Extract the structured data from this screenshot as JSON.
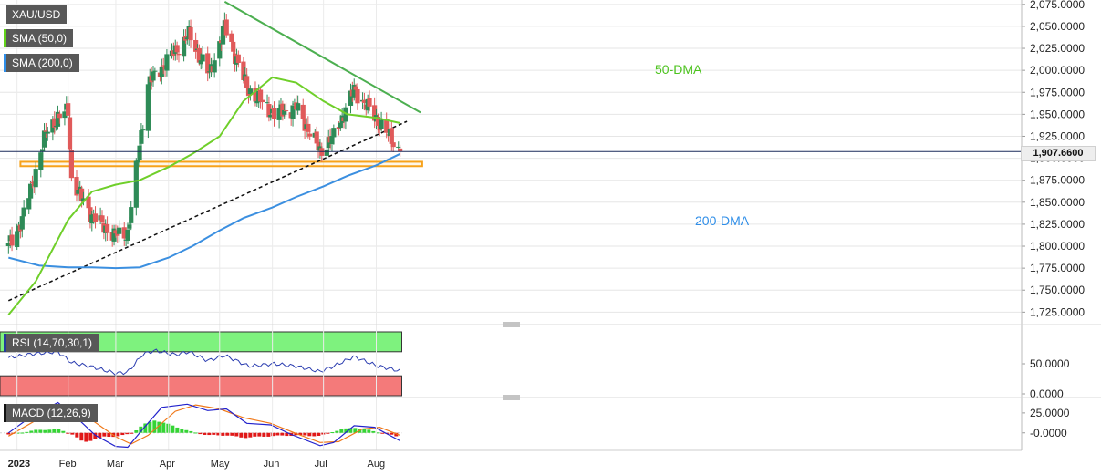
{
  "panels": {
    "price": {
      "legend": [
        {
          "label": "XAU/USD",
          "swatch": "white"
        },
        {
          "label": "SMA (50,0)",
          "swatch": "green"
        },
        {
          "label": "SMA (200,0)",
          "swatch": "blue"
        }
      ],
      "current_price_label": "1,907.6600",
      "annotations": {
        "dma50": "50-DMA",
        "dma200": "200-DMA"
      }
    },
    "rsi": {
      "legend": {
        "label": "RSI (14,70,30,1)",
        "swatch": "navy"
      }
    },
    "macd": {
      "legend": {
        "label": "MACD (12,26,9)",
        "swatch": "dark"
      }
    }
  },
  "chart_data": [
    {
      "type": "candlestick",
      "title": "XAU/USD",
      "x_labels": [
        "2023",
        "Feb",
        "Mar",
        "Apr",
        "May",
        "Jun",
        "Jul",
        "Aug"
      ],
      "y_ticks": [
        "2,075.0000",
        "2,050.0000",
        "2,025.0000",
        "2,000.0000",
        "1,975.0000",
        "1,950.0000",
        "1,925.0000",
        "1,900.0000",
        "1,875.0000",
        "1,850.0000",
        "1,825.0000",
        "1,800.0000",
        "1,775.0000",
        "1,750.0000",
        "1,725.0000"
      ],
      "ylim": [
        1715,
        2080
      ],
      "last_price": 1907.66,
      "ohlc_anchors": [
        {
          "date": "2022-12-28",
          "close": 1800
        },
        {
          "date": "2023-01-05",
          "close": 1830
        },
        {
          "date": "2023-01-20",
          "close": 1935
        },
        {
          "date": "2023-01-26",
          "close": 1945
        },
        {
          "date": "2023-02-01",
          "close": 1955
        },
        {
          "date": "2023-02-03",
          "close": 1875
        },
        {
          "date": "2023-02-15",
          "close": 1835
        },
        {
          "date": "2023-02-28",
          "close": 1812
        },
        {
          "date": "2023-03-08",
          "close": 1815
        },
        {
          "date": "2023-03-15",
          "close": 1915
        },
        {
          "date": "2023-03-20",
          "close": 1985
        },
        {
          "date": "2023-04-04",
          "close": 2020
        },
        {
          "date": "2023-04-13",
          "close": 2040
        },
        {
          "date": "2023-04-25",
          "close": 1995
        },
        {
          "date": "2023-05-04",
          "close": 2050
        },
        {
          "date": "2023-05-17",
          "close": 1980
        },
        {
          "date": "2023-06-02",
          "close": 1950
        },
        {
          "date": "2023-06-15",
          "close": 1958
        },
        {
          "date": "2023-06-29",
          "close": 1908
        },
        {
          "date": "2023-07-07",
          "close": 1925
        },
        {
          "date": "2023-07-19",
          "close": 1978
        },
        {
          "date": "2023-08-01",
          "close": 1945
        },
        {
          "date": "2023-08-15",
          "close": 1907.66
        }
      ],
      "series": [
        {
          "name": "SMA (50,0)",
          "points": [
            {
              "date": "2022-12-28",
              "value": 1722
            },
            {
              "date": "2023-01-13",
              "value": 1760
            },
            {
              "date": "2023-02-01",
              "value": 1830
            },
            {
              "date": "2023-02-15",
              "value": 1862
            },
            {
              "date": "2023-03-01",
              "value": 1870
            },
            {
              "date": "2023-03-15",
              "value": 1875
            },
            {
              "date": "2023-04-01",
              "value": 1890
            },
            {
              "date": "2023-04-15",
              "value": 1905
            },
            {
              "date": "2023-05-01",
              "value": 1925
            },
            {
              "date": "2023-05-15",
              "value": 1965
            },
            {
              "date": "2023-06-01",
              "value": 1992
            },
            {
              "date": "2023-06-15",
              "value": 1986
            },
            {
              "date": "2023-07-01",
              "value": 1965
            },
            {
              "date": "2023-07-15",
              "value": 1950
            },
            {
              "date": "2023-08-01",
              "value": 1946
            },
            {
              "date": "2023-08-15",
              "value": 1940
            }
          ]
        },
        {
          "name": "SMA (200,0)",
          "points": [
            {
              "date": "2022-12-28",
              "value": 1787
            },
            {
              "date": "2023-01-15",
              "value": 1778
            },
            {
              "date": "2023-02-01",
              "value": 1776
            },
            {
              "date": "2023-02-15",
              "value": 1776
            },
            {
              "date": "2023-03-01",
              "value": 1775
            },
            {
              "date": "2023-03-15",
              "value": 1776
            },
            {
              "date": "2023-04-01",
              "value": 1787
            },
            {
              "date": "2023-04-15",
              "value": 1800
            },
            {
              "date": "2023-05-01",
              "value": 1818
            },
            {
              "date": "2023-05-15",
              "value": 1832
            },
            {
              "date": "2023-06-01",
              "value": 1844
            },
            {
              "date": "2023-06-15",
              "value": 1856
            },
            {
              "date": "2023-07-01",
              "value": 1868
            },
            {
              "date": "2023-07-15",
              "value": 1880
            },
            {
              "date": "2023-08-01",
              "value": 1892
            },
            {
              "date": "2023-08-15",
              "value": 1905
            }
          ]
        },
        {
          "name": "resistance",
          "points": [
            {
              "date": "2023-05-04",
              "value": 2078
            },
            {
              "date": "2023-08-27",
              "value": 1952
            }
          ]
        },
        {
          "name": "support",
          "points": [
            {
              "date": "2022-12-28",
              "value": 1738
            },
            {
              "date": "2023-08-19",
              "value": 1942
            }
          ]
        },
        {
          "name": "support-zone",
          "points": [
            {
              "date": "2023-01-04",
              "value": 1896
            },
            {
              "date": "2023-08-28",
              "value": 1891
            }
          ]
        }
      ],
      "colors": {
        "up": "#2e8b57",
        "down": "#e05a5a",
        "sma50": "#6fcf2a",
        "sma200": "#3b8fe0",
        "resistance": "#4caf50",
        "zone": "#f7a21b"
      }
    },
    {
      "type": "line",
      "title": "RSI (14,70,30,1)",
      "y_ticks": [
        "50.0000",
        "0.0000"
      ],
      "ylim": [
        0,
        100
      ],
      "overbought": 70,
      "oversold": 30,
      "series": [
        {
          "name": "RSI",
          "points": [
            {
              "date": "2022-12-28",
              "value": 60
            },
            {
              "date": "2023-01-10",
              "value": 66
            },
            {
              "date": "2023-01-26",
              "value": 70
            },
            {
              "date": "2023-02-03",
              "value": 52
            },
            {
              "date": "2023-02-15",
              "value": 45
            },
            {
              "date": "2023-03-01",
              "value": 34
            },
            {
              "date": "2023-03-08",
              "value": 36
            },
            {
              "date": "2023-03-17",
              "value": 66
            },
            {
              "date": "2023-03-24",
              "value": 72
            },
            {
              "date": "2023-04-05",
              "value": 65
            },
            {
              "date": "2023-04-13",
              "value": 70
            },
            {
              "date": "2023-04-24",
              "value": 55
            },
            {
              "date": "2023-05-04",
              "value": 64
            },
            {
              "date": "2023-05-18",
              "value": 46
            },
            {
              "date": "2023-06-02",
              "value": 50
            },
            {
              "date": "2023-06-15",
              "value": 46
            },
            {
              "date": "2023-06-29",
              "value": 37
            },
            {
              "date": "2023-07-07",
              "value": 46
            },
            {
              "date": "2023-07-19",
              "value": 62
            },
            {
              "date": "2023-08-01",
              "value": 47
            },
            {
              "date": "2023-08-15",
              "value": 38
            }
          ]
        }
      ],
      "colors": {
        "line": "#2b3db0",
        "ob_fill": "#7ef27e",
        "os_fill": "#f47a7a"
      }
    },
    {
      "type": "line",
      "title": "MACD (12,26,9)",
      "y_ticks": [
        "25.0000",
        "-0.0000"
      ],
      "ylim": [
        -22,
        42
      ],
      "histogram": [
        {
          "date": "2022-12-28",
          "value": -2
        },
        {
          "date": "2023-01-12",
          "value": 3
        },
        {
          "date": "2023-01-25",
          "value": 5
        },
        {
          "date": "2023-02-03",
          "value": -1
        },
        {
          "date": "2023-02-10",
          "value": -12
        },
        {
          "date": "2023-02-22",
          "value": -5
        },
        {
          "date": "2023-03-03",
          "value": -4
        },
        {
          "date": "2023-03-10",
          "value": -1
        },
        {
          "date": "2023-03-17",
          "value": 10
        },
        {
          "date": "2023-03-24",
          "value": 16
        },
        {
          "date": "2023-04-05",
          "value": 8
        },
        {
          "date": "2023-04-13",
          "value": 2
        },
        {
          "date": "2023-04-24",
          "value": -3
        },
        {
          "date": "2023-05-05",
          "value": -3
        },
        {
          "date": "2023-05-15",
          "value": -6
        },
        {
          "date": "2023-05-31",
          "value": -4
        },
        {
          "date": "2023-06-15",
          "value": -3
        },
        {
          "date": "2023-06-29",
          "value": -4
        },
        {
          "date": "2023-07-07",
          "value": 2
        },
        {
          "date": "2023-07-19",
          "value": 7
        },
        {
          "date": "2023-07-31",
          "value": 2
        },
        {
          "date": "2023-08-15",
          "value": -5
        }
      ],
      "series": [
        {
          "name": "MACD",
          "points": [
            {
              "date": "2022-12-28",
              "value": 0
            },
            {
              "date": "2023-01-10",
              "value": 20
            },
            {
              "date": "2023-01-26",
              "value": 38
            },
            {
              "date": "2023-02-08",
              "value": 15
            },
            {
              "date": "2023-02-17",
              "value": -3
            },
            {
              "date": "2023-03-01",
              "value": -17
            },
            {
              "date": "2023-03-08",
              "value": -18
            },
            {
              "date": "2023-03-17",
              "value": 5
            },
            {
              "date": "2023-03-28",
              "value": 32
            },
            {
              "date": "2023-04-12",
              "value": 36
            },
            {
              "date": "2023-04-24",
              "value": 28
            },
            {
              "date": "2023-05-05",
              "value": 30
            },
            {
              "date": "2023-05-17",
              "value": 12
            },
            {
              "date": "2023-05-31",
              "value": 10
            },
            {
              "date": "2023-06-12",
              "value": -2
            },
            {
              "date": "2023-06-29",
              "value": -16
            },
            {
              "date": "2023-07-07",
              "value": -12
            },
            {
              "date": "2023-07-19",
              "value": 9
            },
            {
              "date": "2023-07-31",
              "value": 7
            },
            {
              "date": "2023-08-15",
              "value": -10
            }
          ]
        },
        {
          "name": "Signal",
          "points": [
            {
              "date": "2022-12-28",
              "value": -4
            },
            {
              "date": "2023-01-15",
              "value": 18
            },
            {
              "date": "2023-01-31",
              "value": 33
            },
            {
              "date": "2023-02-15",
              "value": 16
            },
            {
              "date": "2023-03-01",
              "value": -5
            },
            {
              "date": "2023-03-10",
              "value": -14
            },
            {
              "date": "2023-03-20",
              "value": -3
            },
            {
              "date": "2023-04-05",
              "value": 27
            },
            {
              "date": "2023-04-17",
              "value": 35
            },
            {
              "date": "2023-05-01",
              "value": 30
            },
            {
              "date": "2023-05-15",
              "value": 19
            },
            {
              "date": "2023-05-31",
              "value": 12
            },
            {
              "date": "2023-06-15",
              "value": -1
            },
            {
              "date": "2023-06-29",
              "value": -12
            },
            {
              "date": "2023-07-10",
              "value": -11
            },
            {
              "date": "2023-07-24",
              "value": 5
            },
            {
              "date": "2023-08-03",
              "value": 7
            },
            {
              "date": "2023-08-15",
              "value": -3
            }
          ]
        }
      ],
      "colors": {
        "macd": "#2222cc",
        "signal": "#f07818",
        "hist_pos": "#35d435",
        "hist_neg": "#e01818"
      }
    }
  ]
}
